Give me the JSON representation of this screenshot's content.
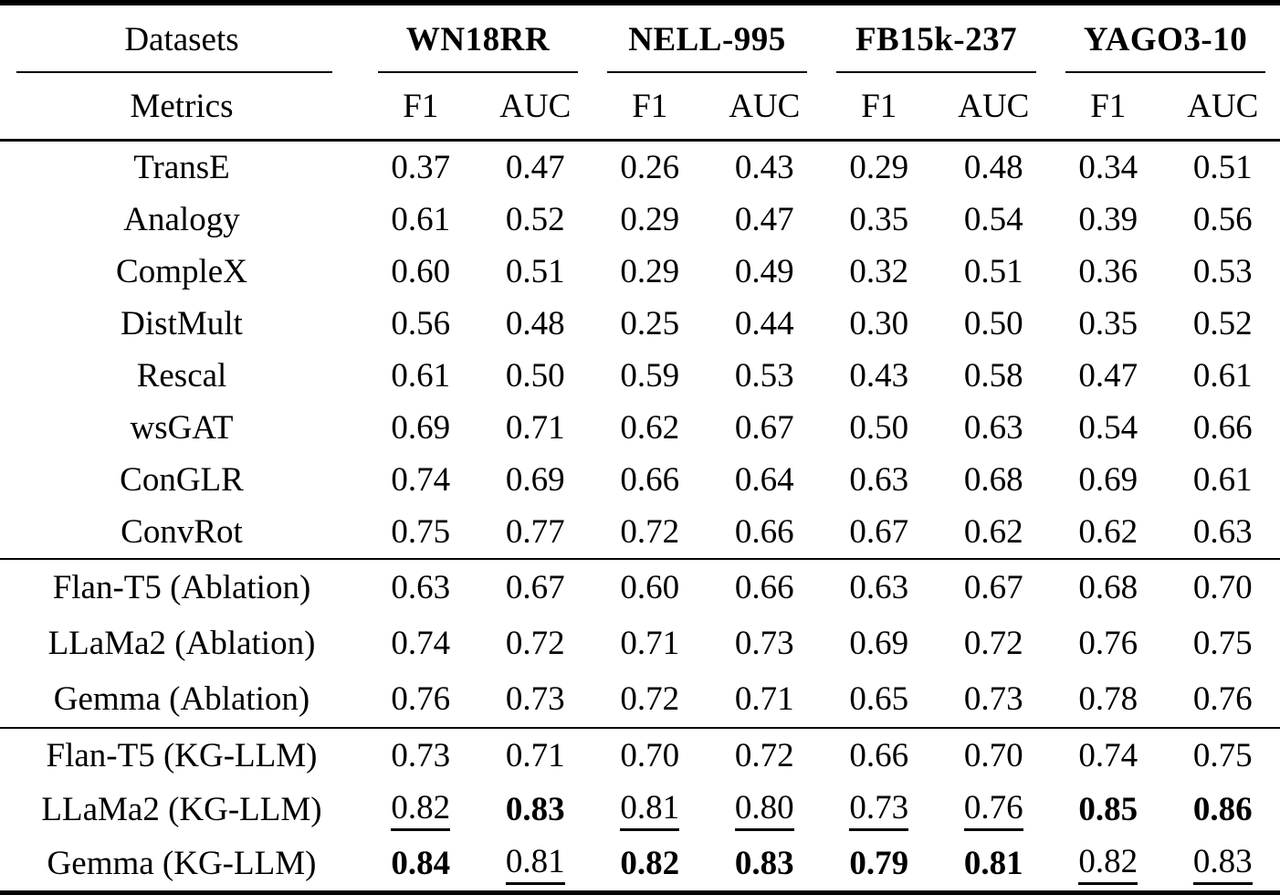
{
  "table": {
    "header": {
      "row_label": "Datasets",
      "metrics_label": "Metrics",
      "datasets": [
        "WN18RR",
        "NELL-995",
        "FB15k-237",
        "YAGO3-10"
      ],
      "metrics": [
        "F1",
        "AUC"
      ]
    },
    "sections": [
      {
        "rows": [
          {
            "label": "TransE",
            "values": [
              "0.37",
              "0.47",
              "0.26",
              "0.43",
              "0.29",
              "0.48",
              "0.34",
              "0.51"
            ]
          },
          {
            "label": "Analogy",
            "values": [
              "0.61",
              "0.52",
              "0.29",
              "0.47",
              "0.35",
              "0.54",
              "0.39",
              "0.56"
            ]
          },
          {
            "label": "CompleX",
            "values": [
              "0.60",
              "0.51",
              "0.29",
              "0.49",
              "0.32",
              "0.51",
              "0.36",
              "0.53"
            ]
          },
          {
            "label": "DistMult",
            "values": [
              "0.56",
              "0.48",
              "0.25",
              "0.44",
              "0.30",
              "0.50",
              "0.35",
              "0.52"
            ]
          },
          {
            "label": "Rescal",
            "values": [
              "0.61",
              "0.50",
              "0.59",
              "0.53",
              "0.43",
              "0.58",
              "0.47",
              "0.61"
            ]
          },
          {
            "label": "wsGAT",
            "values": [
              "0.69",
              "0.71",
              "0.62",
              "0.67",
              "0.50",
              "0.63",
              "0.54",
              "0.66"
            ]
          },
          {
            "label": "ConGLR",
            "values": [
              "0.74",
              "0.69",
              "0.66",
              "0.64",
              "0.63",
              "0.68",
              "0.69",
              "0.61"
            ]
          },
          {
            "label": "ConvRot",
            "values": [
              "0.75",
              "0.77",
              "0.72",
              "0.66",
              "0.67",
              "0.62",
              "0.62",
              "0.63"
            ]
          }
        ]
      },
      {
        "rows": [
          {
            "label": "Flan-T5 (Ablation)",
            "values": [
              "0.63",
              "0.67",
              "0.60",
              "0.66",
              "0.63",
              "0.67",
              "0.68",
              "0.70"
            ]
          },
          {
            "label": "LLaMa2 (Ablation)",
            "values": [
              "0.74",
              "0.72",
              "0.71",
              "0.73",
              "0.69",
              "0.72",
              "0.76",
              "0.75"
            ]
          },
          {
            "label": "Gemma (Ablation)",
            "values": [
              "0.76",
              "0.73",
              "0.72",
              "0.71",
              "0.65",
              "0.73",
              "0.78",
              "0.76"
            ]
          }
        ]
      },
      {
        "rows": [
          {
            "label": "Flan-T5 (KG-LLM)",
            "values": [
              "0.73",
              "0.71",
              "0.70",
              "0.72",
              "0.66",
              "0.70",
              "0.74",
              "0.75"
            ],
            "emphasis": [
              "none",
              "none",
              "none",
              "none",
              "none",
              "none",
              "none",
              "none"
            ]
          },
          {
            "label": "LLaMa2 (KG-LLM)",
            "values": [
              "0.82",
              "0.83",
              "0.81",
              "0.80",
              "0.73",
              "0.76",
              "0.85",
              "0.86"
            ],
            "emphasis": [
              "underline",
              "bold",
              "underline",
              "underline",
              "underline",
              "underline",
              "bold",
              "bold"
            ]
          },
          {
            "label": "Gemma (KG-LLM)",
            "values": [
              "0.84",
              "0.81",
              "0.82",
              "0.83",
              "0.79",
              "0.81",
              "0.82",
              "0.83"
            ],
            "emphasis": [
              "bold",
              "underline",
              "bold",
              "bold",
              "bold",
              "bold",
              "underline",
              "underline"
            ]
          }
        ]
      }
    ],
    "colors": {
      "text": "#000000",
      "background": "#ffffff",
      "rule": "#000000"
    }
  }
}
